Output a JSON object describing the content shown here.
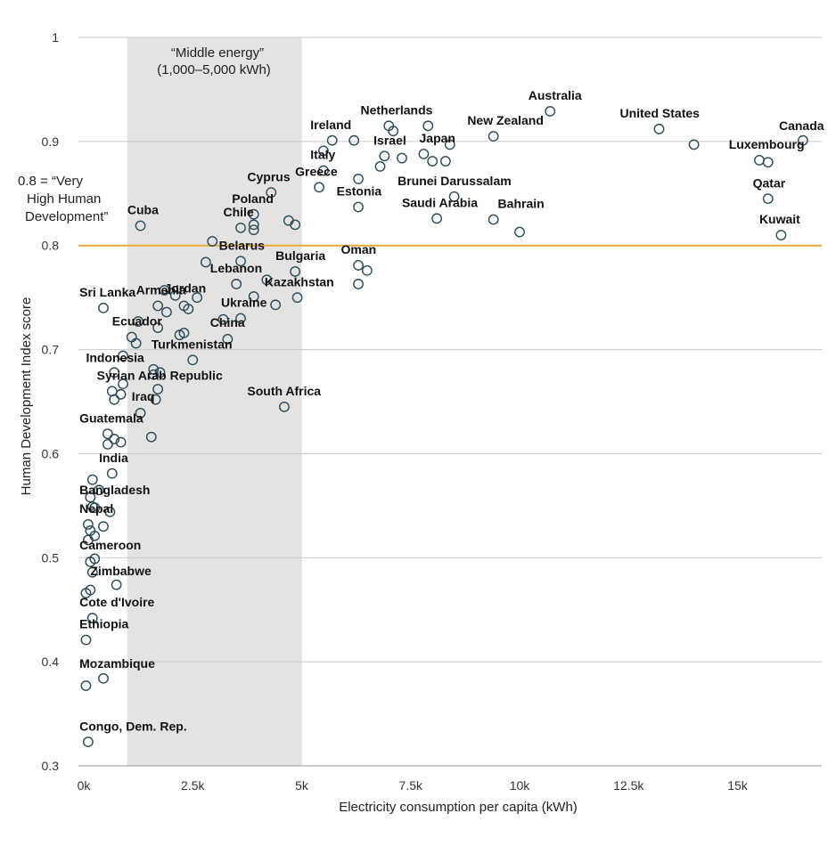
{
  "chart_data": {
    "type": "scatter",
    "xlabel": "Electricity consumption per capita (kWh)",
    "ylabel": "Human Development Index score",
    "xlim": [
      -150,
      17000
    ],
    "ylim": [
      0.3,
      1.0
    ],
    "x_ticks": [
      0,
      2500,
      5000,
      7500,
      10000,
      12500,
      15000
    ],
    "x_tick_labels": [
      "0k",
      "2.5k",
      "5k",
      "7.5k",
      "10k",
      "12.5k",
      "15k"
    ],
    "y_ticks": [
      0.3,
      0.4,
      0.5,
      0.6,
      0.7,
      0.8,
      0.9,
      1.0
    ],
    "y_tick_labels": [
      "0.3",
      "0.4",
      "0.5",
      "0.6",
      "0.7",
      "0.8",
      "0.9",
      "1"
    ],
    "grid": "horizontal",
    "shaded_band": {
      "x_range": [
        1000,
        5000
      ],
      "label_line1": "“Middle energy”",
      "label_line2": "(1,000–5,000 kWh)",
      "color": "#e3e3e3"
    },
    "reference_line": {
      "y": 0.8,
      "label_line1": "0.8 = “Very",
      "label_line2": "High Human",
      "label_line3": "Development”",
      "color": "#e8a838"
    },
    "marker_color": "#2b4a5a",
    "points": [
      {
        "x": 10700,
        "y": 0.929,
        "label": "Australia"
      },
      {
        "x": 16500,
        "y": 0.901,
        "label": "Canada"
      },
      {
        "x": 13200,
        "y": 0.912,
        "label": "United States"
      },
      {
        "x": 14000,
        "y": 0.897,
        "label": ""
      },
      {
        "x": 15500,
        "y": 0.882,
        "label": "Luxembourg"
      },
      {
        "x": 15700,
        "y": 0.88,
        "label": ""
      },
      {
        "x": 15700,
        "y": 0.845,
        "label": "Qatar"
      },
      {
        "x": 16000,
        "y": 0.81,
        "label": "Kuwait"
      },
      {
        "x": 9400,
        "y": 0.905,
        "label": "New Zealand"
      },
      {
        "x": 7900,
        "y": 0.915,
        "label": "Netherlands"
      },
      {
        "x": 7000,
        "y": 0.915,
        "label": ""
      },
      {
        "x": 7100,
        "y": 0.91,
        "label": ""
      },
      {
        "x": 5700,
        "y": 0.901,
        "label": "Ireland"
      },
      {
        "x": 6200,
        "y": 0.901,
        "label": ""
      },
      {
        "x": 6900,
        "y": 0.886,
        "label": "Israel"
      },
      {
        "x": 7300,
        "y": 0.884,
        "label": ""
      },
      {
        "x": 6800,
        "y": 0.876,
        "label": ""
      },
      {
        "x": 7800,
        "y": 0.888,
        "label": "Japan"
      },
      {
        "x": 8000,
        "y": 0.881,
        "label": ""
      },
      {
        "x": 8400,
        "y": 0.897,
        "label": ""
      },
      {
        "x": 8300,
        "y": 0.881,
        "label": ""
      },
      {
        "x": 5500,
        "y": 0.891,
        "label": "Italy"
      },
      {
        "x": 5500,
        "y": 0.872,
        "label": ""
      },
      {
        "x": 5400,
        "y": 0.856,
        "label": "Greece"
      },
      {
        "x": 6300,
        "y": 0.864,
        "label": ""
      },
      {
        "x": 6300,
        "y": 0.837,
        "label": "Estonia"
      },
      {
        "x": 8500,
        "y": 0.847,
        "label": "Brunei Darussalam"
      },
      {
        "x": 8100,
        "y": 0.826,
        "label": "Saudi Arabia"
      },
      {
        "x": 9400,
        "y": 0.825,
        "label": "Bahrain"
      },
      {
        "x": 10000,
        "y": 0.813,
        "label": ""
      },
      {
        "x": 4300,
        "y": 0.851,
        "label": "Cyprus"
      },
      {
        "x": 3900,
        "y": 0.83,
        "label": "Poland"
      },
      {
        "x": 3900,
        "y": 0.82,
        "label": ""
      },
      {
        "x": 3900,
        "y": 0.815,
        "label": ""
      },
      {
        "x": 4700,
        "y": 0.824,
        "label": ""
      },
      {
        "x": 4850,
        "y": 0.82,
        "label": ""
      },
      {
        "x": 3600,
        "y": 0.817,
        "label": "Chile"
      },
      {
        "x": 1300,
        "y": 0.819,
        "label": "Cuba"
      },
      {
        "x": 2950,
        "y": 0.804,
        "label": ""
      },
      {
        "x": 3600,
        "y": 0.785,
        "label": "Belarus"
      },
      {
        "x": 2800,
        "y": 0.784,
        "label": ""
      },
      {
        "x": 4850,
        "y": 0.775,
        "label": "Bulgaria"
      },
      {
        "x": 6300,
        "y": 0.781,
        "label": "Oman"
      },
      {
        "x": 6500,
        "y": 0.776,
        "label": ""
      },
      {
        "x": 6300,
        "y": 0.763,
        "label": ""
      },
      {
        "x": 3500,
        "y": 0.763,
        "label": "Lebanon"
      },
      {
        "x": 4200,
        "y": 0.767,
        "label": ""
      },
      {
        "x": 4900,
        "y": 0.75,
        "label": "Kazakhstan"
      },
      {
        "x": 4400,
        "y": 0.743,
        "label": ""
      },
      {
        "x": 3900,
        "y": 0.751,
        "label": ""
      },
      {
        "x": 1850,
        "y": 0.757,
        "label": "Jordan"
      },
      {
        "x": 2100,
        "y": 0.752,
        "label": ""
      },
      {
        "x": 2600,
        "y": 0.75,
        "label": ""
      },
      {
        "x": 2300,
        "y": 0.742,
        "label": ""
      },
      {
        "x": 2400,
        "y": 0.739,
        "label": ""
      },
      {
        "x": 450,
        "y": 0.74,
        "label": "Sri Lanka"
      },
      {
        "x": 1700,
        "y": 0.742,
        "label": "Armenia"
      },
      {
        "x": 1900,
        "y": 0.736,
        "label": ""
      },
      {
        "x": 1250,
        "y": 0.727,
        "label": ""
      },
      {
        "x": 1700,
        "y": 0.721,
        "label": ""
      },
      {
        "x": 3600,
        "y": 0.73,
        "label": "Ukraine"
      },
      {
        "x": 3200,
        "y": 0.729,
        "label": ""
      },
      {
        "x": 3300,
        "y": 0.71,
        "label": "China"
      },
      {
        "x": 1100,
        "y": 0.712,
        "label": "Ecuador"
      },
      {
        "x": 1200,
        "y": 0.706,
        "label": ""
      },
      {
        "x": 2200,
        "y": 0.714,
        "label": ""
      },
      {
        "x": 2300,
        "y": 0.716,
        "label": ""
      },
      {
        "x": 2500,
        "y": 0.69,
        "label": "Turkmenistan"
      },
      {
        "x": 900,
        "y": 0.694,
        "label": "Indonesia"
      },
      {
        "x": 700,
        "y": 0.678,
        "label": ""
      },
      {
        "x": 1600,
        "y": 0.681,
        "label": ""
      },
      {
        "x": 1750,
        "y": 0.678,
        "label": ""
      },
      {
        "x": 1600,
        "y": 0.676,
        "label": "Syrian Arab Republic"
      },
      {
        "x": 900,
        "y": 0.667,
        "label": ""
      },
      {
        "x": 650,
        "y": 0.66,
        "label": ""
      },
      {
        "x": 850,
        "y": 0.657,
        "label": ""
      },
      {
        "x": 700,
        "y": 0.652,
        "label": ""
      },
      {
        "x": 1700,
        "y": 0.662,
        "label": ""
      },
      {
        "x": 1650,
        "y": 0.652,
        "label": "Iraq"
      },
      {
        "x": 4600,
        "y": 0.645,
        "label": "South Africa"
      },
      {
        "x": 1300,
        "y": 0.639,
        "label": ""
      },
      {
        "x": 1550,
        "y": 0.616,
        "label": ""
      },
      {
        "x": 550,
        "y": 0.619,
        "label": "Guatemala"
      },
      {
        "x": 700,
        "y": 0.614,
        "label": ""
      },
      {
        "x": 850,
        "y": 0.611,
        "label": ""
      },
      {
        "x": 550,
        "y": 0.609,
        "label": ""
      },
      {
        "x": 650,
        "y": 0.581,
        "label": "India"
      },
      {
        "x": 200,
        "y": 0.575,
        "label": ""
      },
      {
        "x": 150,
        "y": 0.558,
        "label": "Bangladesh"
      },
      {
        "x": 350,
        "y": 0.565,
        "label": ""
      },
      {
        "x": 200,
        "y": 0.549,
        "label": ""
      },
      {
        "x": 250,
        "y": 0.548,
        "label": ""
      },
      {
        "x": 600,
        "y": 0.544,
        "label": "Nepal"
      },
      {
        "x": 100,
        "y": 0.532,
        "label": ""
      },
      {
        "x": 150,
        "y": 0.526,
        "label": ""
      },
      {
        "x": 450,
        "y": 0.53,
        "label": ""
      },
      {
        "x": 250,
        "y": 0.521,
        "label": ""
      },
      {
        "x": 100,
        "y": 0.517,
        "label": "Cameroon"
      },
      {
        "x": 150,
        "y": 0.496,
        "label": ""
      },
      {
        "x": 250,
        "y": 0.499,
        "label": ""
      },
      {
        "x": 200,
        "y": 0.486,
        "label": "Zimbabwe"
      },
      {
        "x": 750,
        "y": 0.474,
        "label": ""
      },
      {
        "x": 50,
        "y": 0.466,
        "label": ""
      },
      {
        "x": 150,
        "y": 0.469,
        "label": "Cote d'Ivoire"
      },
      {
        "x": 200,
        "y": 0.442,
        "label": ""
      },
      {
        "x": 50,
        "y": 0.421,
        "label": "Ethiopia"
      },
      {
        "x": 450,
        "y": 0.384,
        "label": "Mozambique"
      },
      {
        "x": 50,
        "y": 0.377,
        "label": ""
      },
      {
        "x": 100,
        "y": 0.323,
        "label": "Congo, Dem. Rep."
      }
    ],
    "labels": [
      {
        "text": "Australia",
        "x": 10200,
        "y": 0.94
      },
      {
        "text": "Canada",
        "x": 15950,
        "y": 0.911
      },
      {
        "text": "United States",
        "x": 12300,
        "y": 0.923
      },
      {
        "text": "Luxembourg",
        "x": 14800,
        "y": 0.893
      },
      {
        "text": "Qatar",
        "x": 15350,
        "y": 0.856
      },
      {
        "text": "Kuwait",
        "x": 15500,
        "y": 0.821
      },
      {
        "text": "New Zealand",
        "x": 8800,
        "y": 0.916
      },
      {
        "text": "Netherlands",
        "x": 6350,
        "y": 0.926
      },
      {
        "text": "Ireland",
        "x": 5200,
        "y": 0.912
      },
      {
        "text": "Israel",
        "x": 6650,
        "y": 0.897
      },
      {
        "text": "Japan",
        "x": 7700,
        "y": 0.899
      },
      {
        "text": "Italy",
        "x": 5200,
        "y": 0.883
      },
      {
        "text": "Greece",
        "x": 4850,
        "y": 0.867
      },
      {
        "text": "Cyprus",
        "x": 3750,
        "y": 0.862
      },
      {
        "text": "Estonia",
        "x": 5800,
        "y": 0.848
      },
      {
        "text": "Brunei Darussalam",
        "x": 7200,
        "y": 0.858
      },
      {
        "text": "Saudi Arabia",
        "x": 7300,
        "y": 0.837
      },
      {
        "text": "Bahrain",
        "x": 9500,
        "y": 0.836
      },
      {
        "text": "Poland",
        "x": 3400,
        "y": 0.841
      },
      {
        "text": "Chile",
        "x": 3200,
        "y": 0.828
      },
      {
        "text": "Cuba",
        "x": 1000,
        "y": 0.83
      },
      {
        "text": "Belarus",
        "x": 3100,
        "y": 0.796
      },
      {
        "text": "Bulgaria",
        "x": 4400,
        "y": 0.786
      },
      {
        "text": "Oman",
        "x": 5900,
        "y": 0.792
      },
      {
        "text": "Lebanon",
        "x": 2900,
        "y": 0.774
      },
      {
        "text": "Kazakhstan",
        "x": 4150,
        "y": 0.761
      },
      {
        "text": "Jordan",
        "x": 1850,
        "y": 0.755
      },
      {
        "text": "Sri Lanka",
        "x": -100,
        "y": 0.751
      },
      {
        "text": "Armenia",
        "x": 1200,
        "y": 0.753
      },
      {
        "text": "Ukraine",
        "x": 3150,
        "y": 0.741
      },
      {
        "text": "China",
        "x": 2900,
        "y": 0.722
      },
      {
        "text": "Ecuador",
        "x": 650,
        "y": 0.723
      },
      {
        "text": "Turkmenistan",
        "x": 1550,
        "y": 0.701
      },
      {
        "text": "Indonesia",
        "x": 50,
        "y": 0.688
      },
      {
        "text": "Syrian Arab Republic",
        "x": 300,
        "y": 0.671
      },
      {
        "text": "Iraq",
        "x": 1100,
        "y": 0.651
      },
      {
        "text": "South Africa",
        "x": 3750,
        "y": 0.656
      },
      {
        "text": "Guatemala",
        "x": -100,
        "y": 0.63
      },
      {
        "text": "India",
        "x": 350,
        "y": 0.592
      },
      {
        "text": "Bangladesh",
        "x": -100,
        "y": 0.561
      },
      {
        "text": "Nepal",
        "x": -100,
        "y": 0.543
      },
      {
        "text": "Cameroon",
        "x": -100,
        "y": 0.508
      },
      {
        "text": "Zimbabwe",
        "x": 150,
        "y": 0.483
      },
      {
        "text": "Cote d'Ivoire",
        "x": -100,
        "y": 0.453
      },
      {
        "text": "Ethiopia",
        "x": -100,
        "y": 0.432
      },
      {
        "text": "Mozambique",
        "x": -100,
        "y": 0.394
      },
      {
        "text": "Congo, Dem. Rep.",
        "x": -100,
        "y": 0.334
      }
    ]
  }
}
